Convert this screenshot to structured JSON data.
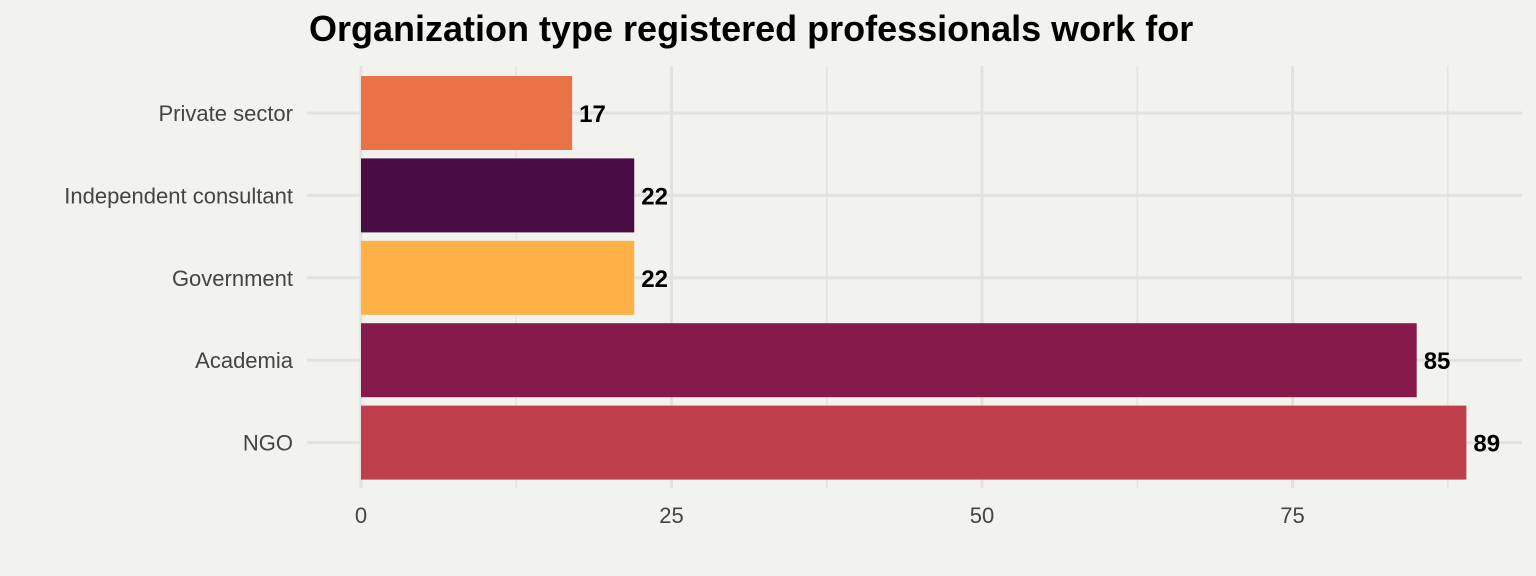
{
  "chart_data": {
    "type": "bar",
    "orientation": "horizontal",
    "title": "Organization type registered professionals work for",
    "xlabel": "",
    "ylabel": "",
    "categories": [
      "Private sector",
      "Independent consultant",
      "Government",
      "Academia",
      "NGO"
    ],
    "values": [
      17,
      22,
      22,
      85,
      89
    ],
    "colors": [
      "#eb7146",
      "#4a0c45",
      "#fdb147",
      "#861a4b",
      "#bf3e4b"
    ],
    "xlim": [
      0,
      92
    ],
    "x_ticks": [
      0,
      25,
      50,
      75
    ],
    "x_tick_labels": [
      "0",
      "25",
      "50",
      "75"
    ],
    "grid": true,
    "legend": "none"
  }
}
